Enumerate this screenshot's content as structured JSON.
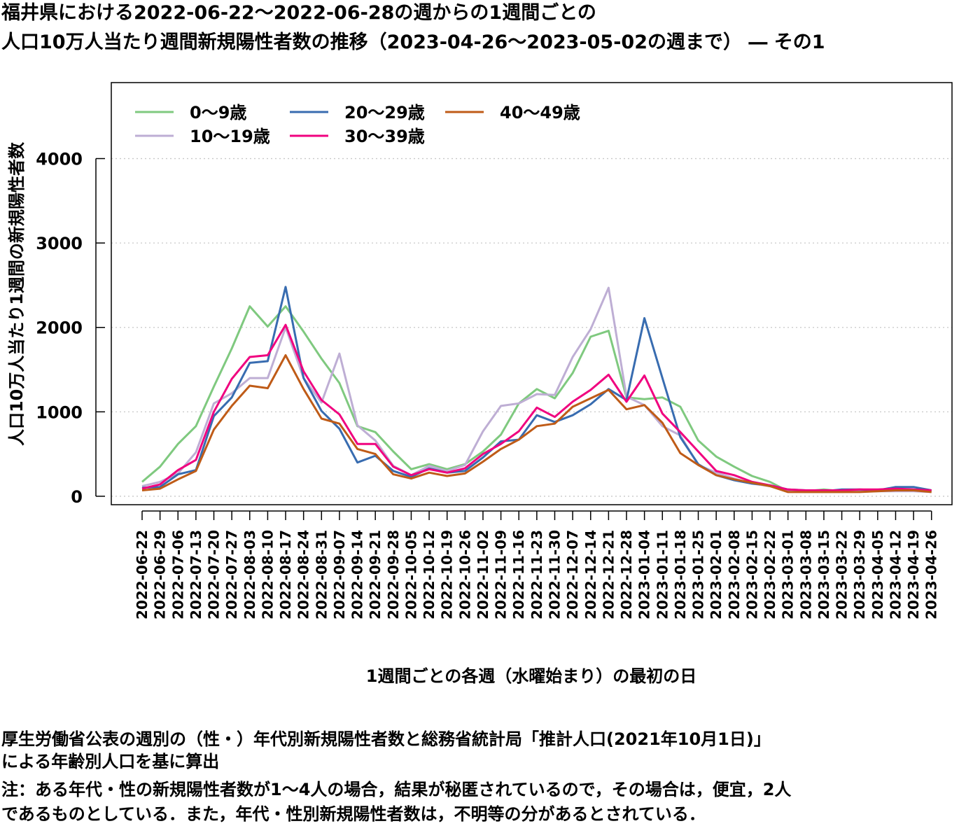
{
  "title_line1": "福井県における2022-06-22～2022-06-28の週からの1週間ごとの",
  "title_line2": "人口10万人当たり週間新規陽性者数の推移（2023-04-26～2023-05-02の週まで） ― その1",
  "notes": {
    "line1": "厚生労働省公表の週別の（性・）年代別新規陽性者数と総務省統計局「推計人口(2021年10月1日)」",
    "line2": "による年齢別人口を基に算出",
    "line3": "注：ある年代・性の新規陽性者数が1～4人の場合，結果が秘匿されているので，その場合は，便宜，2人",
    "line4": "であるものとしている．また，年代・性別新規陽性者数は，不明等の分があるとされている．"
  },
  "chart_data": {
    "type": "line",
    "xlabel": "1週間ごとの各週（水曜始まり）の最初の日",
    "ylabel": "人口10万人当たり1週間の新規陽性者数",
    "ylim": [
      -100,
      4900
    ],
    "yticks": [
      0,
      1000,
      2000,
      3000,
      4000
    ],
    "grid": "horizontal dotted",
    "legend_position": "top-left",
    "categories": [
      "2022-06-22",
      "2022-06-29",
      "2022-07-06",
      "2022-07-13",
      "2022-07-20",
      "2022-07-27",
      "2022-08-03",
      "2022-08-10",
      "2022-08-17",
      "2022-08-24",
      "2022-08-31",
      "2022-09-07",
      "2022-09-14",
      "2022-09-21",
      "2022-09-28",
      "2022-10-05",
      "2022-10-12",
      "2022-10-19",
      "2022-10-26",
      "2022-11-02",
      "2022-11-09",
      "2022-11-16",
      "2022-11-23",
      "2022-11-30",
      "2022-12-07",
      "2022-12-14",
      "2022-12-21",
      "2022-12-28",
      "2023-01-04",
      "2023-01-11",
      "2023-01-18",
      "2023-01-25",
      "2023-02-01",
      "2023-02-08",
      "2023-02-15",
      "2023-02-22",
      "2023-03-01",
      "2023-03-08",
      "2023-03-15",
      "2023-03-22",
      "2023-03-29",
      "2023-04-05",
      "2023-04-12",
      "2023-04-19",
      "2023-04-26"
    ],
    "series": [
      {
        "name": "0～9歳",
        "color": "#7fc97f",
        "values": [
          170,
          350,
          620,
          830,
          1300,
          1750,
          2250,
          2010,
          2250,
          1950,
          1630,
          1340,
          830,
          760,
          530,
          320,
          380,
          320,
          380,
          530,
          730,
          1100,
          1270,
          1160,
          1460,
          1890,
          1960,
          1170,
          1150,
          1170,
          1060,
          660,
          470,
          350,
          240,
          170,
          60,
          60,
          80,
          60,
          60,
          70,
          80,
          80,
          60
        ]
      },
      {
        "name": "10～19歳",
        "color": "#beaed4",
        "values": [
          120,
          170,
          270,
          520,
          1100,
          1220,
          1400,
          1400,
          2000,
          1400,
          1110,
          1690,
          840,
          660,
          360,
          250,
          360,
          300,
          370,
          770,
          1070,
          1100,
          1210,
          1200,
          1650,
          1980,
          2470,
          1180,
          1080,
          830,
          720,
          370,
          280,
          210,
          150,
          120,
          60,
          50,
          50,
          50,
          60,
          60,
          60,
          60,
          50
        ]
      },
      {
        "name": "20～29歳",
        "color": "#386cb0",
        "values": [
          100,
          110,
          260,
          310,
          950,
          1170,
          1580,
          1600,
          2480,
          1400,
          1010,
          800,
          400,
          480,
          300,
          230,
          330,
          280,
          300,
          460,
          650,
          670,
          960,
          880,
          960,
          1090,
          1270,
          1140,
          2110,
          1400,
          700,
          380,
          250,
          190,
          150,
          130,
          80,
          70,
          60,
          80,
          80,
          70,
          110,
          110,
          70
        ]
      },
      {
        "name": "30～39歳",
        "color": "#f0027f",
        "values": [
          90,
          140,
          310,
          430,
          1000,
          1390,
          1650,
          1670,
          2030,
          1480,
          1140,
          970,
          620,
          620,
          350,
          250,
          320,
          280,
          330,
          500,
          620,
          770,
          1050,
          940,
          1120,
          1260,
          1440,
          1120,
          1430,
          980,
          760,
          530,
          300,
          250,
          170,
          130,
          80,
          70,
          70,
          70,
          80,
          80,
          90,
          80,
          70
        ]
      },
      {
        "name": "40～49歳",
        "color": "#bf5b17",
        "values": [
          70,
          90,
          200,
          300,
          790,
          1070,
          1310,
          1280,
          1670,
          1270,
          920,
          860,
          560,
          500,
          260,
          210,
          280,
          240,
          270,
          410,
          560,
          670,
          830,
          860,
          1060,
          1160,
          1260,
          1030,
          1080,
          870,
          510,
          370,
          250,
          200,
          160,
          120,
          50,
          50,
          50,
          50,
          50,
          60,
          70,
          70,
          50
        ]
      }
    ]
  }
}
